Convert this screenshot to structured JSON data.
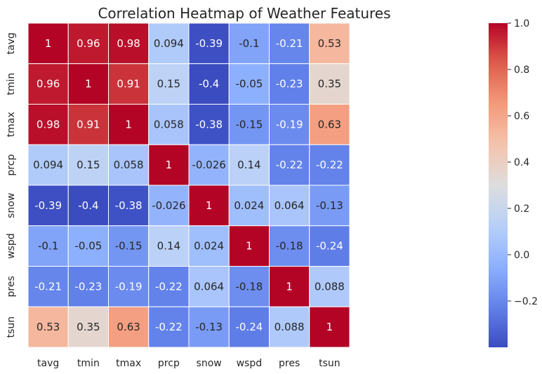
{
  "chart_data": {
    "type": "heatmap",
    "title": "Correlation Heatmap of Weather Features",
    "x_labels": [
      "tavg",
      "tmin",
      "tmax",
      "prcp",
      "snow",
      "wspd",
      "pres",
      "tsun"
    ],
    "y_labels": [
      "tavg",
      "tmin",
      "tmax",
      "prcp",
      "snow",
      "wspd",
      "pres",
      "tsun"
    ],
    "values": [
      [
        1,
        0.96,
        0.98,
        0.094,
        -0.39,
        -0.1,
        -0.21,
        0.53
      ],
      [
        0.96,
        1,
        0.91,
        0.15,
        -0.4,
        -0.05,
        -0.23,
        0.35
      ],
      [
        0.98,
        0.91,
        1,
        0.058,
        -0.38,
        -0.15,
        -0.19,
        0.63
      ],
      [
        0.094,
        0.15,
        0.058,
        1,
        -0.026,
        0.14,
        -0.22,
        -0.22
      ],
      [
        -0.39,
        -0.4,
        -0.38,
        -0.026,
        1,
        0.024,
        0.064,
        -0.13
      ],
      [
        -0.1,
        -0.05,
        -0.15,
        0.14,
        0.024,
        1,
        -0.18,
        -0.24
      ],
      [
        -0.21,
        -0.23,
        -0.19,
        -0.22,
        0.064,
        -0.18,
        1,
        0.088
      ],
      [
        0.53,
        0.35,
        0.63,
        -0.22,
        -0.13,
        -0.24,
        0.088,
        1
      ]
    ],
    "labels": [
      [
        "1",
        "0.96",
        "0.98",
        "0.094",
        "-0.39",
        "-0.1",
        "-0.21",
        "0.53"
      ],
      [
        "0.96",
        "1",
        "0.91",
        "0.15",
        "-0.4",
        "-0.05",
        "-0.23",
        "0.35"
      ],
      [
        "0.98",
        "0.91",
        "1",
        "0.058",
        "-0.38",
        "-0.15",
        "-0.19",
        "0.63"
      ],
      [
        "0.094",
        "0.15",
        "0.058",
        "1",
        "-0.026",
        "0.14",
        "-0.22",
        "-0.22"
      ],
      [
        "-0.39",
        "-0.4",
        "-0.38",
        "-0.026",
        "1",
        "0.024",
        "0.064",
        "-0.13"
      ],
      [
        "-0.1",
        "-0.05",
        "-0.15",
        "0.14",
        "0.024",
        "1",
        "-0.18",
        "-0.24"
      ],
      [
        "-0.21",
        "-0.23",
        "-0.19",
        "-0.22",
        "0.064",
        "-0.18",
        "1",
        "0.088"
      ],
      [
        "0.53",
        "0.35",
        "0.63",
        "-0.22",
        "-0.13",
        "-0.24",
        "0.088",
        "1"
      ]
    ],
    "colormap": "coolwarm",
    "colorbar": {
      "vmin": -0.4,
      "vmax": 1.0,
      "ticks": [
        1.0,
        0.8,
        0.6,
        0.4,
        0.2,
        0.0,
        -0.2
      ],
      "tick_labels": [
        "1.0",
        "0.8",
        "0.6",
        "0.4",
        "0.2",
        "0.0",
        "−0.2"
      ]
    },
    "colors": {
      "low": "#3b4cc0",
      "mid": "#dddddd",
      "high": "#b40426",
      "cell_border": "#ffffff",
      "text_dark": "#262626",
      "text_light": "#ffffff"
    }
  }
}
